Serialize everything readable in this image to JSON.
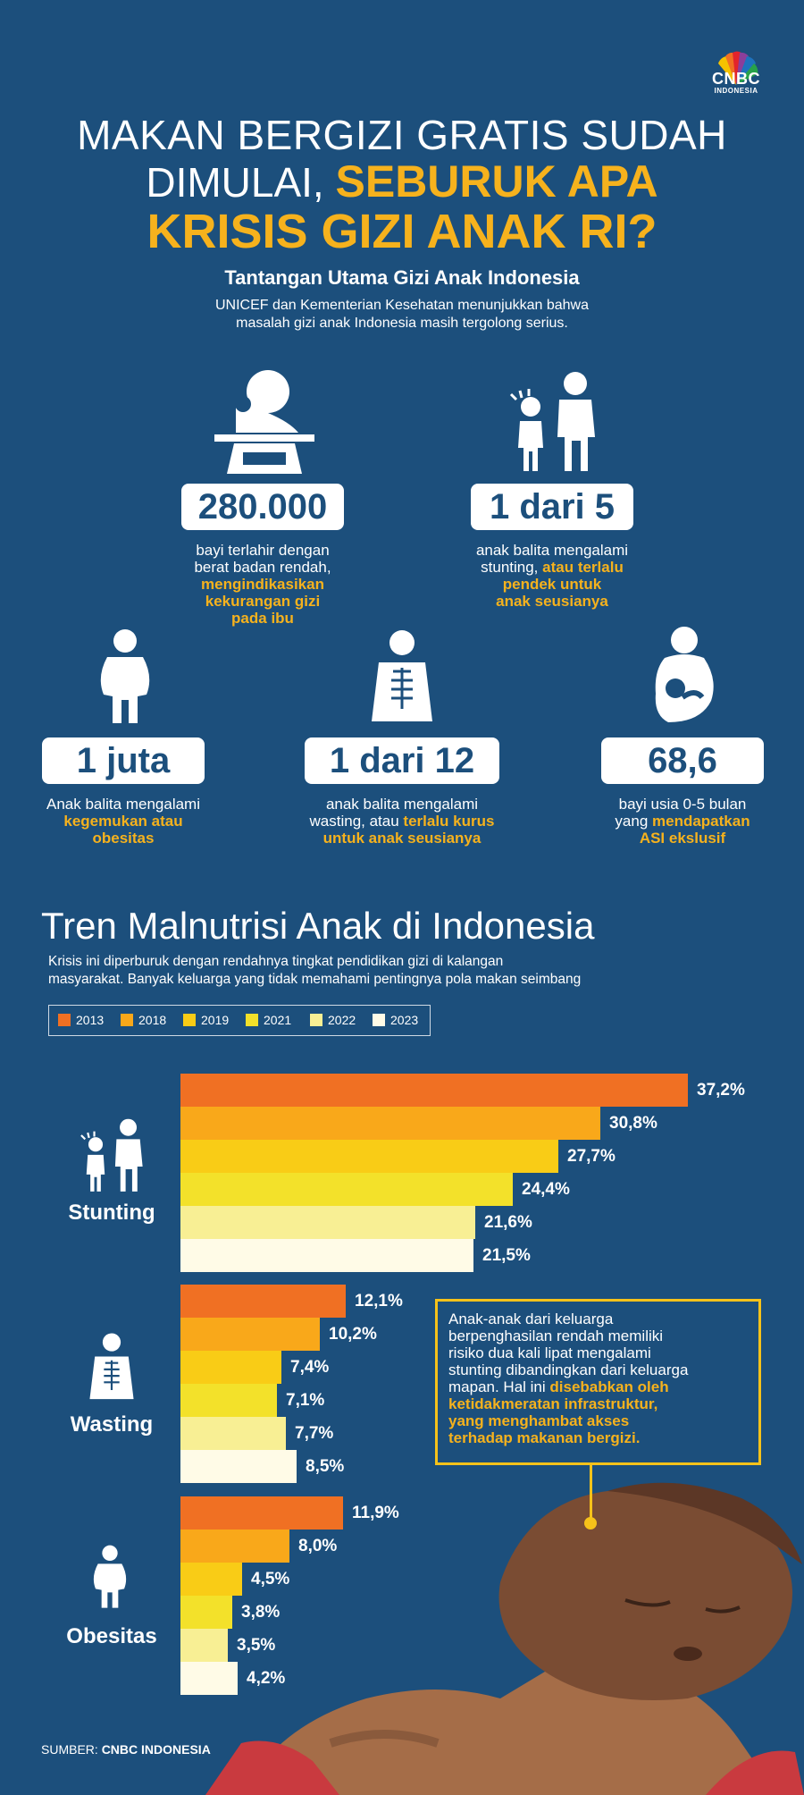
{
  "brand": {
    "name": "CNBC",
    "sub": "INDONESIA"
  },
  "headline": {
    "line1": "MAKAN BERGIZI GRATIS SUDAH",
    "line2_white": "DIMULAI, ",
    "line2_yellow": "SEBURUK APA",
    "line3": "KRISIS GIZI ANAK RI?"
  },
  "challenge": {
    "title": "Tantangan Utama Gizi Anak Indonesia",
    "intro_line1": "UNICEF dan Kementerian Kesehatan menunjukkan bahwa",
    "intro_line2": "masalah gizi anak Indonesia masih tergolong serius."
  },
  "stats": [
    {
      "value": "280.000",
      "icon": "baby-scale-icon",
      "lines": [
        [
          "bayi terlahir dengan",
          ""
        ],
        [
          "berat badan rendah,",
          ""
        ],
        [
          "",
          "mengindikasikan"
        ],
        [
          "",
          "kekurangan gizi"
        ],
        [
          "",
          "pada ibu"
        ]
      ]
    },
    {
      "value": "1 dari 5",
      "icon": "child-adult-icon",
      "lines": [
        [
          "anak balita mengalami",
          ""
        ],
        [
          "stunting, ",
          "atau terlalu"
        ],
        [
          "",
          "pendek untuk"
        ],
        [
          "",
          "anak seusianya"
        ]
      ]
    },
    {
      "value": "1 juta",
      "icon": "obese-child-icon",
      "lines": [
        [
          "Anak balita mengalami",
          ""
        ],
        [
          "",
          "kegemukan atau"
        ],
        [
          "",
          "obesitas"
        ]
      ]
    },
    {
      "value": "1 dari 12",
      "icon": "thin-child-icon",
      "lines": [
        [
          "anak balita mengalami",
          ""
        ],
        [
          "wasting, atau ",
          "terlalu kurus"
        ],
        [
          "",
          "untuk anak seusianya"
        ]
      ]
    },
    {
      "value": "68,6",
      "icon": "breastfeeding-icon",
      "lines": [
        [
          "bayi usia 0-5 bulan",
          ""
        ],
        [
          "yang ",
          "mendapatkan"
        ],
        [
          "",
          "ASI ekslusif"
        ]
      ]
    }
  ],
  "trend": {
    "title": "Tren Malnutrisi Anak di Indonesia",
    "intro_line1": "Krisis ini diperburuk dengan rendahnya tingkat pendidikan gizi di kalangan",
    "intro_line2": "masyarakat. Banyak keluarga yang tidak memahami pentingnya pola makan seimbang"
  },
  "chart_data": {
    "type": "bar",
    "orientation": "horizontal",
    "series_names": [
      "2013",
      "2018",
      "2019",
      "2021",
      "2022",
      "2023"
    ],
    "colors": [
      "#f07023",
      "#f9a81a",
      "#f9cc16",
      "#f3e12a",
      "#f8ef94",
      "#fffbe7"
    ],
    "legend_placement": "top-left",
    "categories": [
      {
        "name": "Stunting",
        "values": [
          37.2,
          30.8,
          27.7,
          24.4,
          21.6,
          21.5
        ],
        "labels": [
          "37,2%",
          "30,8%",
          "27,7%",
          "24,4%",
          "21,6%",
          "21,5%"
        ]
      },
      {
        "name": "Wasting",
        "values": [
          12.1,
          10.2,
          7.4,
          7.1,
          7.7,
          8.5
        ],
        "labels": [
          "12,1%",
          "10,2%",
          "7,4%",
          "7,1%",
          "7,7%",
          "8,5%"
        ]
      },
      {
        "name": "Obesitas",
        "values": [
          11.9,
          8.0,
          4.5,
          3.8,
          3.5,
          4.2
        ],
        "labels": [
          "11,9%",
          "8,0%",
          "4,5%",
          "3,8%",
          "3,5%",
          "4,2%"
        ]
      }
    ]
  },
  "callout": {
    "lines": [
      [
        "Anak-anak dari keluarga",
        ""
      ],
      [
        "berpenghasilan rendah memiliki",
        ""
      ],
      [
        "risiko dua kali lipat mengalami",
        ""
      ],
      [
        "stunting dibandingkan dari keluarga",
        ""
      ],
      [
        "mapan. Hal ini ",
        "disebabkan oleh"
      ],
      [
        "",
        "ketidakmeratan infrastruktur,"
      ],
      [
        "",
        "yang menghambat akses"
      ],
      [
        "",
        "terhadap makanan bergizi."
      ]
    ]
  },
  "source": {
    "label": "SUMBER: ",
    "name": "CNBC INDONESIA"
  }
}
